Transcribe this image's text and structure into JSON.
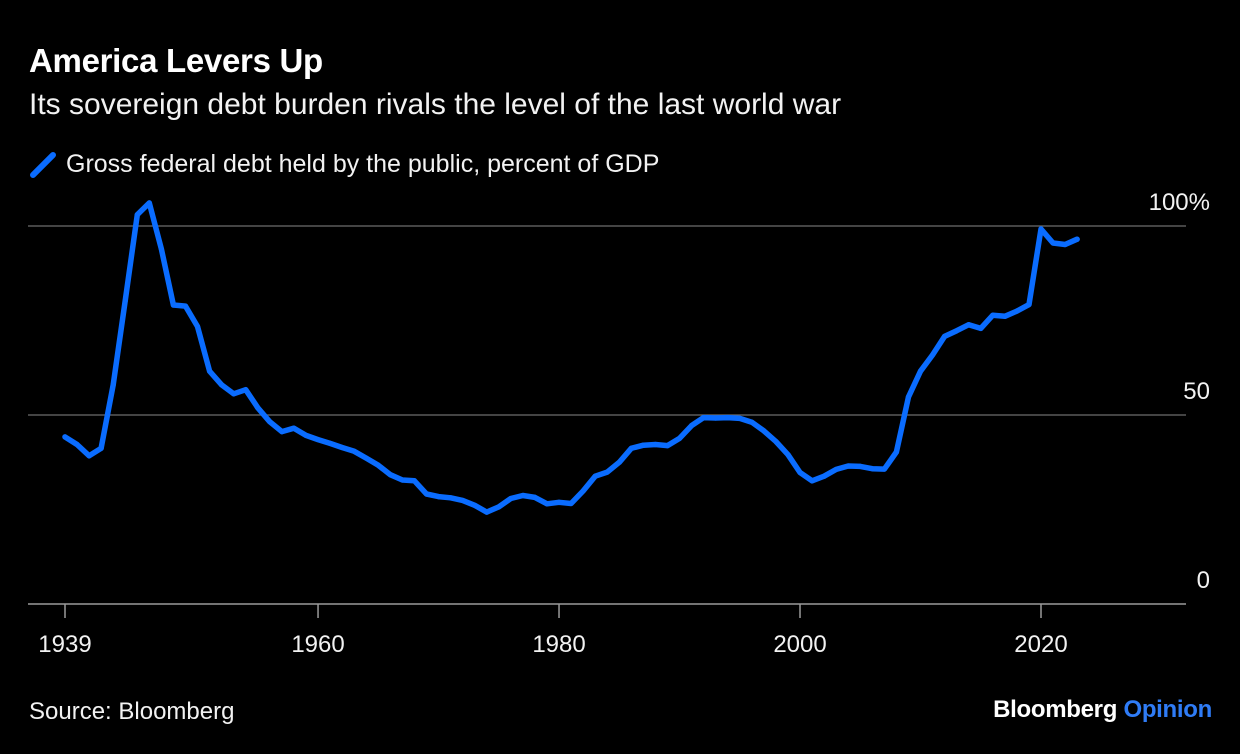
{
  "header": {
    "title": "America Levers Up",
    "subtitle": "Its sovereign debt burden rivals the level of the last world war"
  },
  "footer": {
    "source": "Source: Bloomberg",
    "brand_name": "Bloomberg",
    "brand_section": "Opinion"
  },
  "colors": {
    "background": "#000000",
    "series": "#0a6cff",
    "gridline": "#6e6e6e",
    "text": "#ffffff",
    "brand_accent": "#2f7cf6"
  },
  "chart_data": {
    "type": "line",
    "title": "America Levers Up",
    "subtitle": "Its sovereign debt burden rivals the level of the last world war",
    "xlabel": "",
    "ylabel": "",
    "xlim": [
      1939,
      2034
    ],
    "ylim": [
      0,
      100
    ],
    "x_ticks": [
      1939,
      1960,
      1980,
      2000,
      2020
    ],
    "x_tick_labels": [
      "1939",
      "1960",
      "1980",
      "2000",
      "2020"
    ],
    "y_ticks": [
      0,
      50,
      100
    ],
    "y_tick_labels": [
      "0",
      "50",
      "100%"
    ],
    "grid": true,
    "legend": "top-left",
    "series": [
      {
        "name": "Gross federal debt held by the public, percent of GDP",
        "x": [
          1939,
          1940,
          1941,
          1942,
          1943,
          1944,
          1945,
          1946,
          1947,
          1948,
          1949,
          1950,
          1951,
          1952,
          1953,
          1954,
          1955,
          1956,
          1957,
          1958,
          1959,
          1960,
          1961,
          1962,
          1963,
          1964,
          1965,
          1966,
          1967,
          1968,
          1969,
          1970,
          1971,
          1972,
          1973,
          1974,
          1975,
          1976,
          1977,
          1978,
          1979,
          1980,
          1981,
          1982,
          1983,
          1984,
          1985,
          1986,
          1987,
          1988,
          1989,
          1990,
          1991,
          1992,
          1993,
          1994,
          1995,
          1996,
          1997,
          1998,
          1999,
          2000,
          2001,
          2002,
          2003,
          2004,
          2005,
          2006,
          2007,
          2008,
          2009,
          2010,
          2011,
          2012,
          2013,
          2014,
          2015,
          2016,
          2017,
          2018,
          2019,
          2020,
          2021,
          2022,
          2023
        ],
        "values": [
          44.2,
          42.2,
          39.2,
          41.2,
          58.0,
          80.2,
          103.0,
          106.1,
          93.9,
          79.1,
          78.8,
          73.4,
          61.6,
          58.0,
          55.6,
          56.7,
          51.9,
          48.2,
          45.6,
          46.5,
          44.6,
          43.5,
          42.5,
          41.4,
          40.4,
          38.6,
          36.7,
          34.2,
          32.8,
          32.6,
          29.1,
          28.4,
          28.1,
          27.4,
          26.1,
          24.3,
          25.7,
          27.9,
          28.7,
          28.2,
          26.5,
          26.9,
          26.6,
          29.9,
          33.8,
          34.9,
          37.5,
          41.2,
          42.0,
          42.2,
          41.9,
          43.8,
          47.2,
          49.3,
          49.2,
          49.3,
          49.1,
          48.1,
          45.8,
          43.0,
          39.5,
          34.8,
          32.6,
          33.8,
          35.6,
          36.5,
          36.4,
          35.8,
          35.7,
          40.2,
          54.8,
          61.6,
          65.9,
          70.8,
          72.3,
          73.9,
          72.9,
          76.4,
          76.1,
          77.5,
          79.2,
          99.2,
          95.5,
          95.1,
          96.5
        ]
      }
    ]
  }
}
